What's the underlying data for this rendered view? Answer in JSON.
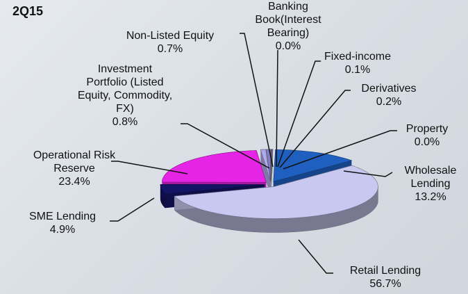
{
  "chart_data": {
    "type": "pie",
    "title": "2Q15",
    "categories": [
      "Banking Book(Interest Bearing)",
      "Fixed-income",
      "Derivatives",
      "Property",
      "Wholesale Lending",
      "Retail Lending",
      "SME Lending",
      "Operational Risk Reserve",
      "Investment Portfolio (Listed Equity, Commodity, FX)",
      "Non-Listed Equity"
    ],
    "values": [
      0.0,
      0.1,
      0.2,
      0.0,
      13.2,
      56.7,
      4.9,
      23.4,
      0.8,
      0.7
    ],
    "value_labels": [
      "0.0%",
      "0.1%",
      "0.2%",
      "0.0%",
      "13.2%",
      "56.7%",
      "4.9%",
      "23.4%",
      "0.8%",
      "0.7%"
    ],
    "colors": [
      "#a0a0d8",
      "#e07a68",
      "#6a6aa8",
      "#c0c0c0",
      "#1f5fc0",
      "#c8c8f0",
      "#141466",
      "#e624e6",
      "#b0a8e8",
      "#8080c0"
    ]
  }
}
